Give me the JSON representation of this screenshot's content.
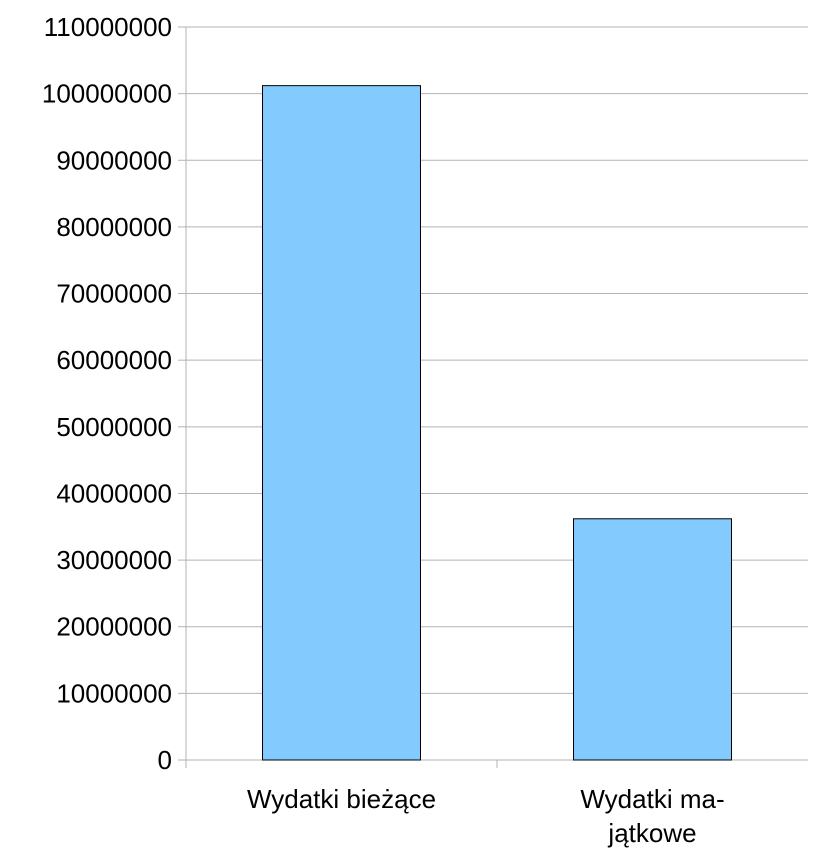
{
  "chart_data": {
    "type": "bar",
    "categories": [
      "Wydatki bieżące",
      "Wydatki ma-\njątkowe"
    ],
    "values": [
      101200000,
      36200000
    ],
    "color": "#83caff",
    "ylim": [
      0,
      110000000
    ],
    "yticks": [
      0,
      10000000,
      20000000,
      30000000,
      40000000,
      50000000,
      60000000,
      70000000,
      80000000,
      90000000,
      100000000,
      110000000
    ],
    "grid": true
  }
}
